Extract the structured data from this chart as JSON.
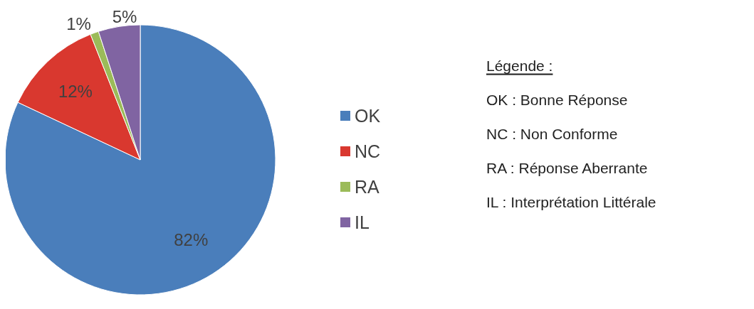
{
  "chart_data": {
    "type": "pie",
    "categories": [
      "OK",
      "NC",
      "RA",
      "IL"
    ],
    "values": [
      82,
      12,
      1,
      5
    ],
    "colors": [
      "#4a7ebb",
      "#d9382f",
      "#9bbb59",
      "#8064a2"
    ],
    "value_labels": [
      "82%",
      "12%",
      "1%",
      "5%"
    ],
    "legend": "right",
    "annotations": [
      "Légende :",
      "OK : Bonne Réponse",
      "NC : Non Conforme",
      "RA : Réponse Aberrante",
      "IL : Interprétation Littérale"
    ]
  }
}
